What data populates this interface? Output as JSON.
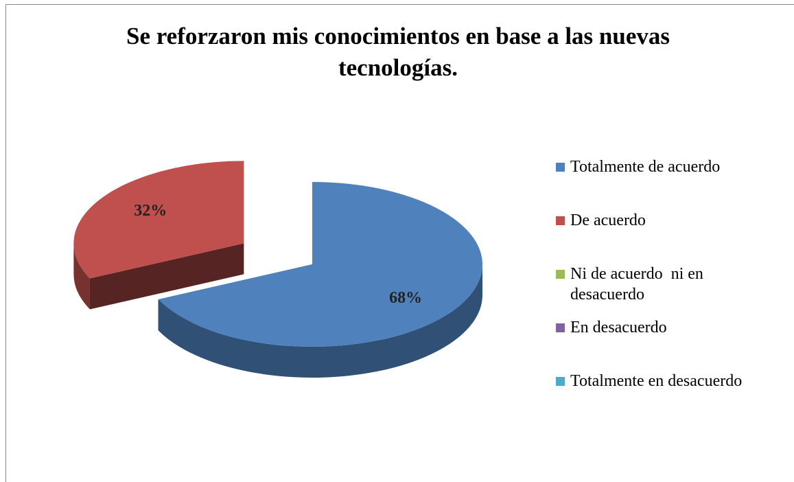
{
  "chart_data": {
    "type": "pie",
    "title": "Se reforzaron mis conocimientos en base a las nuevas tecnologías.",
    "categories": [
      "Totalmente de acuerdo",
      "De acuerdo",
      "Ni de acuerdo  ni en desacuerdo",
      "En desacuerdo",
      "Totalmente en desacuerdo"
    ],
    "values": [
      68,
      32,
      0,
      0,
      0
    ],
    "value_labels": [
      "68%",
      "32%",
      null,
      null,
      null
    ],
    "colors": [
      "#4f81bd",
      "#c0504d",
      "#9bbb59",
      "#8064a2",
      "#4bacc6"
    ]
  }
}
